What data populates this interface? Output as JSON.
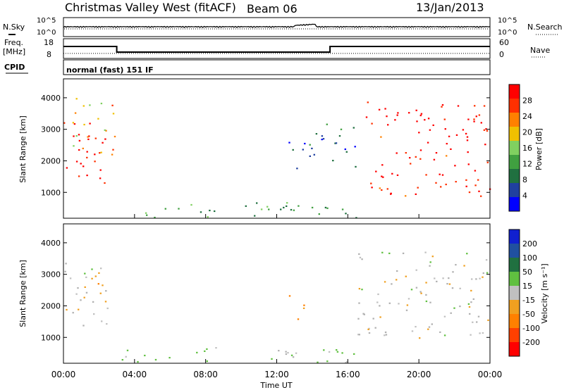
{
  "header": {
    "station": "Christmas Valley West (fitACF)",
    "beam": "Beam 06",
    "date": "13/Jan/2013"
  },
  "noise_panel": {
    "left_label": "N.Sky",
    "right_label": "N.Search",
    "ticks": [
      "10^5",
      "10^0"
    ]
  },
  "freq_panel": {
    "left_label_1": "Freq.",
    "left_label_2": "[MHz]",
    "left_ticks": [
      "18",
      "8"
    ],
    "right_label": "Nave",
    "right_ticks": [
      "60",
      "0"
    ]
  },
  "cpid": {
    "label": "CPID",
    "value": "normal (fast) 151 IF"
  },
  "colors": {
    "power": [
      "#0000ff",
      "#2040a0",
      "#207040",
      "#40a040",
      "#80d060",
      "#f0c000",
      "#ff8000",
      "#ff3000",
      "#ff0000"
    ],
    "velocity": [
      "#ff0000",
      "#ff4000",
      "#ff8000",
      "#f0a020",
      "#c0c0c0",
      "#60c040",
      "#207040",
      "#2050a0",
      "#1020d0"
    ],
    "ground": "#b0b0b0"
  },
  "chart_data": [
    {
      "type": "line",
      "title": "Christmas Valley West (fitACF)",
      "subtitle": "Beam 06 — 13/Jan/2013",
      "xlabel": "Time UT",
      "x_ticks": [
        "00:00",
        "04:00",
        "08:00",
        "12:00",
        "16:00",
        "20:00",
        "00:00"
      ],
      "series": [
        {
          "name": "Freq.",
          "x_hours": [
            0,
            3,
            3,
            15,
            15,
            24
          ],
          "values": [
            14.5,
            14.5,
            10.5,
            10.5,
            14.5,
            14.5
          ]
        },
        {
          "name": "Nave",
          "x_hours": [
            0,
            24
          ],
          "values": [
            18,
            18
          ]
        }
      ]
    },
    {
      "type": "heatmap",
      "ylabel": "Slant Range [km]",
      "y_ticks": [
        "1000",
        "2000",
        "3000",
        "4000"
      ],
      "ylim": [
        180,
        4600
      ],
      "xlim_hours": [
        0,
        24
      ],
      "colorbar": {
        "label": "Power [dB]",
        "ticks": [
          "28",
          "24",
          "20",
          "16",
          "12",
          "8",
          "4"
        ],
        "range": [
          0,
          30
        ]
      },
      "regions": [
        {
          "t_start": 0,
          "t_end": 2.5,
          "r_low": 1200,
          "r_high": 3400,
          "level": 28
        },
        {
          "t_start": 0.5,
          "t_end": 3.0,
          "r_low": 2000,
          "r_high": 4000,
          "level": 20
        },
        {
          "t_start": 12.5,
          "t_end": 14.0,
          "r_low": 1500,
          "r_high": 2700,
          "level": 6
        },
        {
          "t_start": 14.0,
          "t_end": 16.5,
          "r_low": 1800,
          "r_high": 3200,
          "level": 6
        },
        {
          "t_start": 17.0,
          "t_end": 24.0,
          "r_low": 900,
          "r_high": 3900,
          "level": 28
        },
        {
          "t_start": 3.0,
          "t_end": 16.5,
          "r_low": 200,
          "r_high": 700,
          "level": 12
        }
      ]
    },
    {
      "type": "heatmap",
      "ylabel": "Slant Range [km]",
      "y_ticks": [
        "1000",
        "2000",
        "3000",
        "4000"
      ],
      "ylim": [
        180,
        4600
      ],
      "xlim_hours": [
        0,
        24
      ],
      "colorbar": {
        "label": "Velocity [m s⁻¹]",
        "ticks": [
          "200",
          "100",
          "50",
          "15",
          "-15",
          "-50",
          "-100",
          "-200"
        ],
        "range": [
          -250,
          250
        ]
      },
      "regions": [
        {
          "t_start": 0,
          "t_end": 2.5,
          "r_low": 1300,
          "r_high": 3400,
          "level": 0
        },
        {
          "t_start": 1.0,
          "t_end": 2.5,
          "r_low": 2000,
          "r_high": 3000,
          "level": -60
        },
        {
          "t_start": 12.5,
          "t_end": 13.5,
          "r_low": 1500,
          "r_high": 2500,
          "level": -80
        },
        {
          "t_start": 16.5,
          "t_end": 24.0,
          "r_low": 1000,
          "r_high": 3800,
          "level": 0
        },
        {
          "t_start": 3.0,
          "t_end": 16.5,
          "r_low": 200,
          "r_high": 700,
          "level": 40
        }
      ]
    }
  ]
}
